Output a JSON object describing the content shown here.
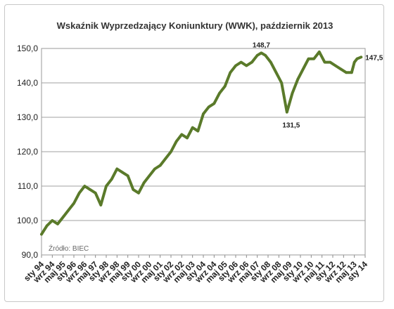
{
  "chart_data": {
    "type": "line",
    "title": "Wskaźnik Wyprzedzający Koniunktury (WWK), październik 2013",
    "source_note": "Źródło: BIEC",
    "xlabel": "",
    "ylabel": "",
    "ylim": [
      90,
      150
    ],
    "yticks": [
      "90,0",
      "100,0",
      "110,0",
      "120,0",
      "130,0",
      "140,0",
      "150,0"
    ],
    "xticks": [
      "sty 94",
      "wrz 94",
      "maj 95",
      "sty 96",
      "wrz 96",
      "maj 97",
      "sty 98",
      "wrz 98",
      "maj 99",
      "sty 00",
      "wrz 00",
      "maj 01",
      "sty 02",
      "wrz 02",
      "maj 03",
      "sty 04",
      "wrz 04",
      "maj 05",
      "sty 06",
      "wrz 06",
      "maj 07",
      "sty 08",
      "wrz 08",
      "maj 09",
      "sty 10",
      "wrz 10",
      "maj 11",
      "sty 12",
      "wrz 12",
      "maj 13",
      "sty 14"
    ],
    "grid": "horizontal",
    "line_color": "#5a7a2a",
    "annotations": [
      {
        "label": "148,7",
        "x": 163,
        "y": 148.7,
        "placement": "above"
      },
      {
        "label": "131,5",
        "x": 182,
        "y": 131.5,
        "placement": "below"
      },
      {
        "label": "147,5",
        "x": 237,
        "y": 147.5,
        "placement": "right"
      }
    ],
    "series": [
      {
        "x": [
          0,
          4,
          8,
          12,
          16,
          20,
          24,
          28,
          32,
          36,
          40,
          44,
          48,
          52,
          56,
          60,
          64,
          68,
          72,
          76,
          80,
          84,
          88,
          92,
          96,
          100,
          104,
          108,
          112,
          116,
          120,
          124,
          128,
          132,
          136,
          140,
          144,
          148,
          152,
          156,
          160,
          163,
          166,
          170,
          174,
          178,
          182,
          186,
          190,
          194,
          198,
          202,
          206,
          210,
          214,
          218,
          222,
          226,
          230,
          232,
          234,
          237
        ],
        "values": [
          96.0,
          98.5,
          100.0,
          99.0,
          101.0,
          103.0,
          105.0,
          108.0,
          110.0,
          109.0,
          108.0,
          104.5,
          110.0,
          112.0,
          115.0,
          114.0,
          113.0,
          109.0,
          108.0,
          111.0,
          113.0,
          115.0,
          116.0,
          118.0,
          120.0,
          123.0,
          125.0,
          124.0,
          127.0,
          126.0,
          131.0,
          133.0,
          134.0,
          137.0,
          139.0,
          143.0,
          145.0,
          146.0,
          145.0,
          146.0,
          148.0,
          148.7,
          148.0,
          146.0,
          143.0,
          140.0,
          131.5,
          137.0,
          141.0,
          144.0,
          147.0,
          147.0,
          149.0,
          146.0,
          146.0,
          145.0,
          144.0,
          143.0,
          143.0,
          146.0,
          147.0,
          147.5
        ]
      }
    ]
  }
}
